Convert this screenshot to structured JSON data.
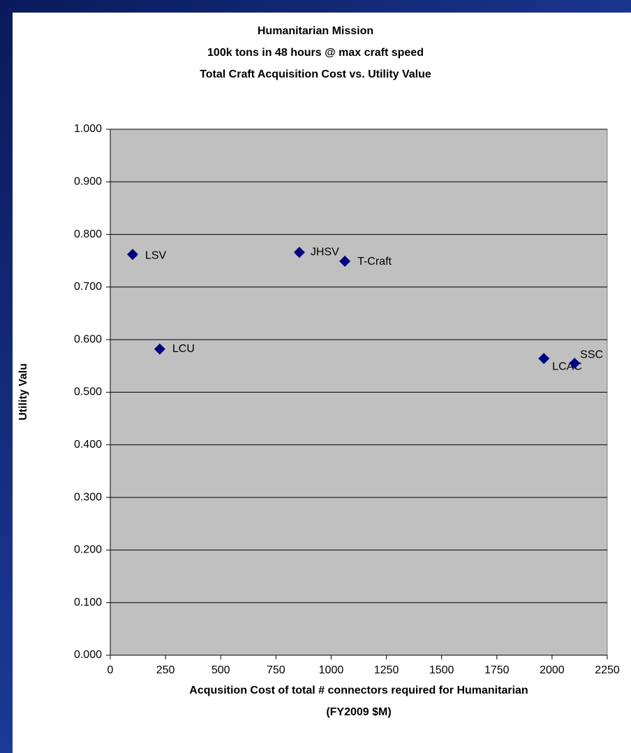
{
  "chart_data": {
    "type": "scatter",
    "title": [
      "Humanitarian Mission",
      "100k tons in 48 hours @ max craft speed",
      "Total Craft Acquisition Cost vs. Utility Value"
    ],
    "x_label": [
      "Acqusition Cost of total # connectors required for Humanitarian",
      "(FY2009 $M)"
    ],
    "y_label": "Utility Valu",
    "point_labels": [
      "LSV",
      "LCU",
      "JHSV",
      "T-Craft",
      "LCAC",
      "SSC"
    ],
    "x": [
      101,
      224,
      856,
      1062,
      1963,
      2102
    ],
    "values": [
      0.762,
      0.582,
      0.766,
      0.749,
      0.564,
      0.555
    ],
    "color": "#000080",
    "xlim": [
      0,
      2250
    ],
    "xticks": [
      0,
      250,
      500,
      750,
      1000,
      1250,
      1500,
      1750,
      2000,
      2250
    ],
    "ylim": [
      0,
      1
    ],
    "yticks": [
      {
        "value": 0,
        "label": "0.000"
      },
      {
        "value": 0.1,
        "label": "0.100"
      },
      {
        "value": 0.2,
        "label": "0.200"
      },
      {
        "value": 0.3,
        "label": "0.300"
      },
      {
        "value": 0.4,
        "label": "0.400"
      },
      {
        "value": 0.5,
        "label": "0.500"
      },
      {
        "value": 0.6,
        "label": "0.600"
      },
      {
        "value": 0.7,
        "label": "0.700"
      },
      {
        "value": 0.8,
        "label": "0.800"
      },
      {
        "value": 0.9,
        "label": "0.900"
      },
      {
        "value": 1,
        "label": "1.000"
      }
    ],
    "grid": true
  }
}
